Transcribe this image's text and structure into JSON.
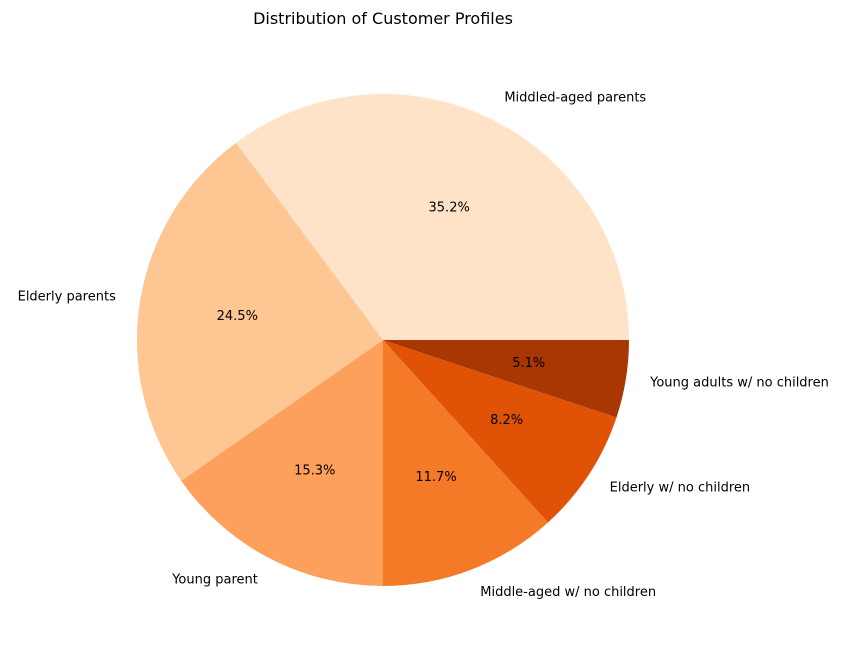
{
  "chart_data": {
    "type": "pie",
    "title": "Distribution of Customer Profiles",
    "categories": [
      "Middled-aged parents",
      "Elderly parents",
      "Young parent",
      "Middle-aged w/ no children",
      "Elderly w/ no children",
      "Young adults w/ no children"
    ],
    "values": [
      35.2,
      24.5,
      15.3,
      11.7,
      8.2,
      5.1
    ],
    "value_labels": [
      "35.2%",
      "24.5%",
      "15.3%",
      "11.7%",
      "8.2%",
      "5.1%"
    ],
    "colors": [
      "#fee3c8",
      "#fdc692",
      "#fda05c",
      "#f57a28",
      "#e05206",
      "#a93703"
    ],
    "legend": "none",
    "start_angle": "0 degrees (3 o'clock), counter-clockwise"
  }
}
